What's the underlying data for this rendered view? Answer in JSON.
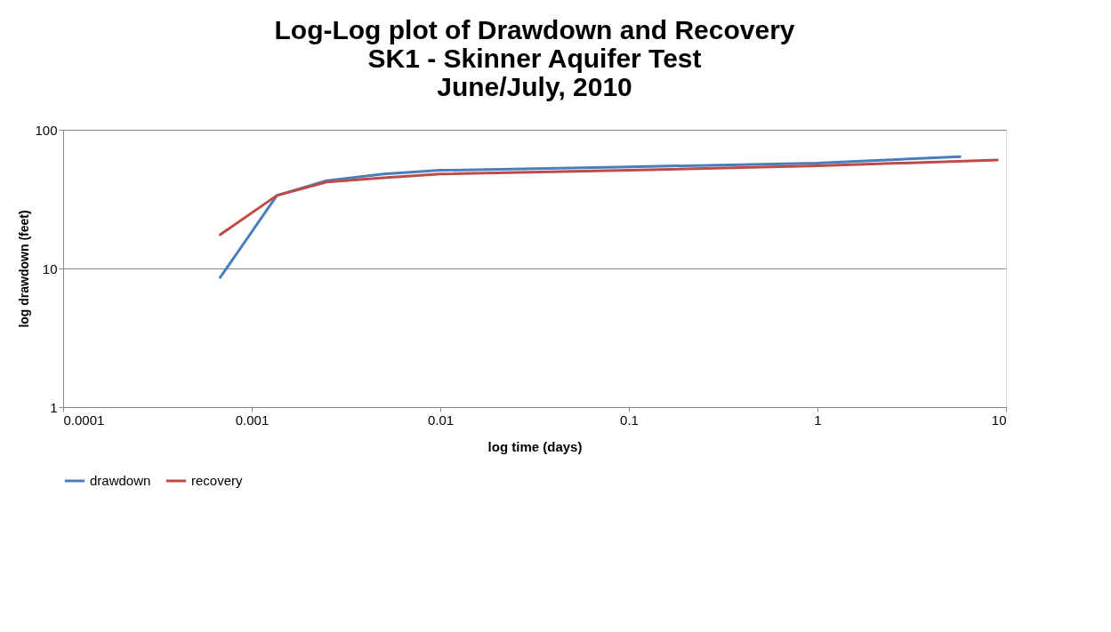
{
  "chart_data": {
    "type": "line",
    "title": "Log-Log plot of Drawdown and Recovery\nSK1 - Skinner Aquifer Test\nJune/July, 2010",
    "xlabel": "log time (days)",
    "ylabel": "log drawdown (feet)",
    "series": [
      {
        "name": "drawdown",
        "color": "#4a7ebb",
        "x": [
          0.00068,
          0.00136,
          0.0025,
          0.005,
          0.01,
          0.1,
          1,
          5.7
        ],
        "values": [
          8.6,
          33.6,
          43,
          48,
          51,
          54,
          57.5,
          64
        ]
      },
      {
        "name": "recovery",
        "color": "#be4b48",
        "x": [
          0.00068,
          0.00136,
          0.0025,
          0.005,
          0.01,
          0.1,
          1,
          9
        ],
        "values": [
          17.5,
          33.6,
          42,
          45,
          48,
          51,
          55,
          60.5
        ]
      }
    ],
    "log": "xy",
    "xlim": [
      0.0001,
      10
    ],
    "ylim": [
      1,
      100
    ],
    "xticks": [
      0.0001,
      0.001,
      0.01,
      0.1,
      1,
      10
    ],
    "yticks": [
      1,
      10,
      100
    ],
    "grid": "y",
    "legend": "bottom",
    "marker": "none",
    "line_style": "solid"
  }
}
